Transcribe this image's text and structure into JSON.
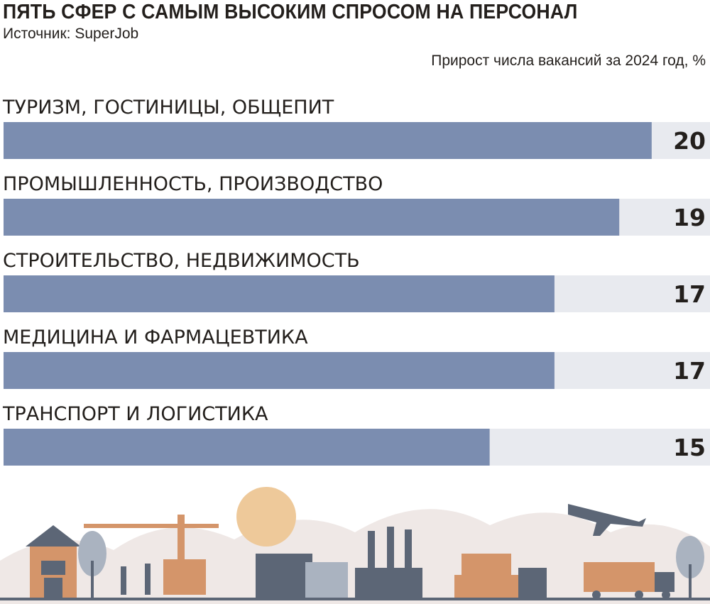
{
  "header": {
    "title": "ПЯТЬ СФЕР С САМЫМ ВЫСОКИМ СПРОСОМ НА ПЕРСОНАЛ",
    "source": "Источник: SuperJob",
    "subtitle": "Прирост числа вакансий за 2024 год, %"
  },
  "chart_data": {
    "type": "bar",
    "orientation": "horizontal",
    "title": "ПЯТЬ СФЕР С САМЫМ ВЫСОКИМ СПРОСОМ НА ПЕРСОНАЛ",
    "subtitle": "Прирост числа вакансий за 2024 год, %",
    "categories": [
      "ТУРИЗМ, ГОСТИНИЦЫ, ОБЩЕПИТ",
      "ПРОМЫШЛЕННОСТЬ, ПРОИЗВОДСТВО",
      "СТРОИТЕЛЬСТВО, НЕДВИЖИМОСТЬ",
      "МЕДИЦИНА И ФАРМАЦЕВТИКА",
      "ТРАНСПОРТ И ЛОГИСТИКА"
    ],
    "values": [
      20,
      19,
      17,
      17,
      15
    ],
    "xlim": [
      0,
      21.8
    ],
    "grid": false,
    "legend": "none",
    "colors": {
      "bar": "#7b8db0",
      "track": "#e8eaef",
      "text": "#231f1c"
    }
  },
  "illustration": {
    "colors": {
      "sun": "#eec99a",
      "hills": "#efe8e6",
      "slate": "#5c6676",
      "brick": "#d4956a",
      "tree": "#aab3c0",
      "ground": "#4b5566"
    }
  }
}
